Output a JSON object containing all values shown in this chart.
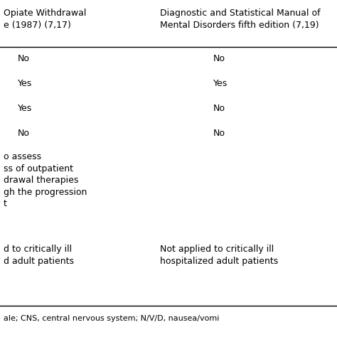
{
  "col1_header": "Opiate Withdrawal\ne (1987) (7,17)",
  "col2_header": "Diagnostic and Statistical Manual of\nMental Disorders fifth edition (7,19)",
  "rows_col1": [
    "No",
    "Yes",
    "Yes",
    "No"
  ],
  "rows_col2": [
    "No",
    "Yes",
    "No",
    "No"
  ],
  "multiline_col1": "o assess\nss of outpatient\ndrawal therapies\ngh the progression\nt",
  "multiline_col2": "",
  "last_col1": "d to critically ill\nd adult patients",
  "last_col2": "Not applied to critically ill\nhospitalized adult patients",
  "footer": "ale; CNS, central nervous system; N/V/D, nausea/vomi",
  "bg_color": "#ffffff",
  "line_color": "#000000",
  "text_color": "#000000",
  "font_size": 9.0,
  "header_font_size": 9.0
}
